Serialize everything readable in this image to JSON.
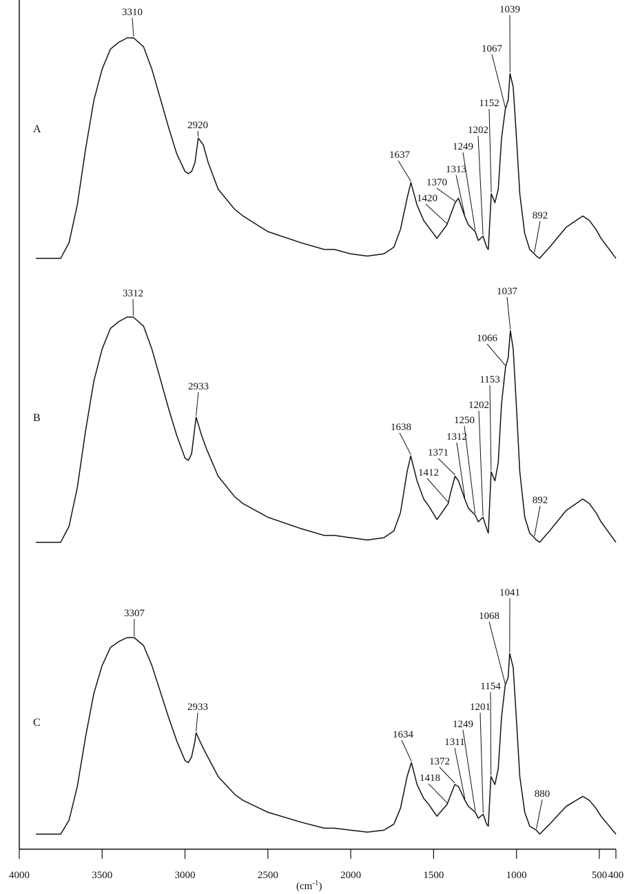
{
  "chart_data": {
    "type": "line",
    "xlabel": "(cm",
    "xlabel_sup": "-1",
    "xlabel_close": ")",
    "xlim": [
      4000,
      400
    ],
    "x_reversed": true,
    "grid": false,
    "ticks": [
      {
        "value": 4000,
        "label": "4000"
      },
      {
        "value": 3500,
        "label": "3500"
      },
      {
        "value": 3000,
        "label": "3000"
      },
      {
        "value": 2500,
        "label": "2500"
      },
      {
        "value": 2000,
        "label": "2000"
      },
      {
        "value": 1500,
        "label": "1500"
      },
      {
        "value": 1000,
        "label": "1000"
      },
      {
        "value": 500,
        "label": "500"
      },
      {
        "value": 400,
        "label": "400"
      }
    ],
    "series": [
      {
        "name": "A",
        "peaks": [
          {
            "x": 3310,
            "label": "3310"
          },
          {
            "x": 2920,
            "label": "2920"
          },
          {
            "x": 1637,
            "label": "1637"
          },
          {
            "x": 1420,
            "label": "1420"
          },
          {
            "x": 1370,
            "label": "1370"
          },
          {
            "x": 1313,
            "label": "1313"
          },
          {
            "x": 1249,
            "label": "1249"
          },
          {
            "x": 1202,
            "label": "1202"
          },
          {
            "x": 1152,
            "label": "1152"
          },
          {
            "x": 1067,
            "label": "1067"
          },
          {
            "x": 1039,
            "label": "1039"
          },
          {
            "x": 892,
            "label": "892"
          }
        ],
        "x": [
          3900,
          3750,
          3700,
          3650,
          3600,
          3550,
          3500,
          3450,
          3400,
          3350,
          3310,
          3250,
          3200,
          3150,
          3100,
          3050,
          3000,
          2980,
          2960,
          2940,
          2920,
          2890,
          2860,
          2800,
          2700,
          2650,
          2500,
          2300,
          2160,
          2100,
          2000,
          1900,
          1800,
          1740,
          1700,
          1660,
          1637,
          1600,
          1560,
          1530,
          1480,
          1460,
          1420,
          1400,
          1370,
          1350,
          1313,
          1290,
          1249,
          1230,
          1202,
          1180,
          1170,
          1152,
          1130,
          1110,
          1090,
          1067,
          1050,
          1039,
          1020,
          1000,
          980,
          950,
          920,
          892,
          880,
          860,
          800,
          700,
          600,
          560,
          520,
          490,
          450,
          420,
          400
        ],
        "y": [
          0.01,
          0.01,
          0.08,
          0.25,
          0.5,
          0.72,
          0.86,
          0.95,
          0.98,
          1.0,
          1.0,
          0.96,
          0.86,
          0.73,
          0.6,
          0.48,
          0.4,
          0.39,
          0.4,
          0.44,
          0.55,
          0.52,
          0.44,
          0.32,
          0.23,
          0.2,
          0.13,
          0.08,
          0.05,
          0.05,
          0.03,
          0.02,
          0.03,
          0.06,
          0.14,
          0.28,
          0.35,
          0.25,
          0.18,
          0.15,
          0.1,
          0.12,
          0.16,
          0.2,
          0.26,
          0.28,
          0.2,
          0.16,
          0.13,
          0.09,
          0.11,
          0.06,
          0.05,
          0.3,
          0.26,
          0.32,
          0.55,
          0.68,
          0.72,
          0.84,
          0.78,
          0.55,
          0.3,
          0.12,
          0.05,
          0.03,
          0.02,
          0.01,
          0.06,
          0.15,
          0.2,
          0.18,
          0.14,
          0.1,
          0.06,
          0.03,
          0.01
        ]
      },
      {
        "name": "B",
        "peaks": [
          {
            "x": 3312,
            "label": "3312"
          },
          {
            "x": 2933,
            "label": "2933"
          },
          {
            "x": 1638,
            "label": "1638"
          },
          {
            "x": 1412,
            "label": "1412"
          },
          {
            "x": 1371,
            "label": "1371"
          },
          {
            "x": 1312,
            "label": "1312"
          },
          {
            "x": 1250,
            "label": "1250"
          },
          {
            "x": 1202,
            "label": "1202"
          },
          {
            "x": 1153,
            "label": "1153"
          },
          {
            "x": 1066,
            "label": "1066"
          },
          {
            "x": 1037,
            "label": "1037"
          },
          {
            "x": 892,
            "label": "892"
          }
        ],
        "x": [
          3900,
          3750,
          3700,
          3650,
          3600,
          3550,
          3500,
          3450,
          3400,
          3350,
          3312,
          3250,
          3200,
          3150,
          3100,
          3050,
          3000,
          2980,
          2960,
          2940,
          2933,
          2900,
          2870,
          2800,
          2700,
          2650,
          2500,
          2300,
          2160,
          2100,
          2000,
          1900,
          1800,
          1740,
          1700,
          1660,
          1638,
          1600,
          1560,
          1530,
          1480,
          1460,
          1412,
          1400,
          1371,
          1350,
          1312,
          1290,
          1250,
          1230,
          1202,
          1180,
          1170,
          1153,
          1130,
          1110,
          1090,
          1066,
          1050,
          1037,
          1020,
          1000,
          980,
          950,
          920,
          892,
          880,
          860,
          800,
          700,
          600,
          560,
          520,
          490,
          450,
          420,
          400
        ],
        "y": [
          0.01,
          0.01,
          0.08,
          0.25,
          0.5,
          0.72,
          0.86,
          0.95,
          0.98,
          1.0,
          1.0,
          0.96,
          0.86,
          0.73,
          0.6,
          0.48,
          0.38,
          0.37,
          0.4,
          0.52,
          0.56,
          0.48,
          0.42,
          0.3,
          0.21,
          0.18,
          0.12,
          0.07,
          0.04,
          0.04,
          0.03,
          0.02,
          0.03,
          0.06,
          0.14,
          0.32,
          0.39,
          0.28,
          0.2,
          0.17,
          0.11,
          0.13,
          0.18,
          0.22,
          0.3,
          0.28,
          0.2,
          0.16,
          0.13,
          0.1,
          0.12,
          0.07,
          0.05,
          0.32,
          0.28,
          0.36,
          0.62,
          0.78,
          0.82,
          0.94,
          0.86,
          0.6,
          0.32,
          0.12,
          0.05,
          0.03,
          0.02,
          0.01,
          0.06,
          0.15,
          0.2,
          0.18,
          0.14,
          0.1,
          0.06,
          0.03,
          0.01
        ]
      },
      {
        "name": "C",
        "peaks": [
          {
            "x": 3307,
            "label": "3307"
          },
          {
            "x": 2933,
            "label": "2933"
          },
          {
            "x": 1634,
            "label": "1634"
          },
          {
            "x": 1418,
            "label": "1418"
          },
          {
            "x": 1372,
            "label": "1372"
          },
          {
            "x": 1311,
            "label": "1311"
          },
          {
            "x": 1249,
            "label": "1249"
          },
          {
            "x": 1201,
            "label": "1201"
          },
          {
            "x": 1154,
            "label": "1154"
          },
          {
            "x": 1068,
            "label": "1068"
          },
          {
            "x": 1041,
            "label": "1041"
          },
          {
            "x": 880,
            "label": "880"
          }
        ],
        "x": [
          3900,
          3750,
          3700,
          3650,
          3600,
          3550,
          3500,
          3450,
          3400,
          3350,
          3307,
          3250,
          3200,
          3150,
          3100,
          3050,
          3000,
          2980,
          2960,
          2940,
          2933,
          2900,
          2870,
          2800,
          2700,
          2650,
          2500,
          2300,
          2160,
          2100,
          2000,
          1900,
          1800,
          1740,
          1700,
          1660,
          1634,
          1600,
          1560,
          1530,
          1480,
          1460,
          1418,
          1400,
          1372,
          1350,
          1311,
          1290,
          1249,
          1230,
          1201,
          1180,
          1170,
          1154,
          1130,
          1110,
          1090,
          1068,
          1050,
          1041,
          1020,
          1000,
          980,
          950,
          920,
          880,
          870,
          860,
          800,
          700,
          600,
          560,
          520,
          490,
          450,
          420,
          400
        ],
        "y": [
          0.01,
          0.01,
          0.08,
          0.25,
          0.5,
          0.72,
          0.86,
          0.95,
          0.98,
          1.0,
          1.0,
          0.96,
          0.86,
          0.73,
          0.6,
          0.48,
          0.38,
          0.37,
          0.4,
          0.48,
          0.52,
          0.46,
          0.41,
          0.3,
          0.21,
          0.18,
          0.12,
          0.07,
          0.04,
          0.04,
          0.03,
          0.02,
          0.03,
          0.06,
          0.14,
          0.3,
          0.37,
          0.26,
          0.19,
          0.16,
          0.1,
          0.12,
          0.16,
          0.2,
          0.26,
          0.25,
          0.18,
          0.15,
          0.12,
          0.09,
          0.11,
          0.06,
          0.05,
          0.3,
          0.26,
          0.34,
          0.6,
          0.76,
          0.8,
          0.92,
          0.85,
          0.58,
          0.3,
          0.12,
          0.05,
          0.03,
          0.02,
          0.01,
          0.06,
          0.15,
          0.2,
          0.18,
          0.14,
          0.1,
          0.06,
          0.03,
          0.01
        ]
      }
    ]
  }
}
